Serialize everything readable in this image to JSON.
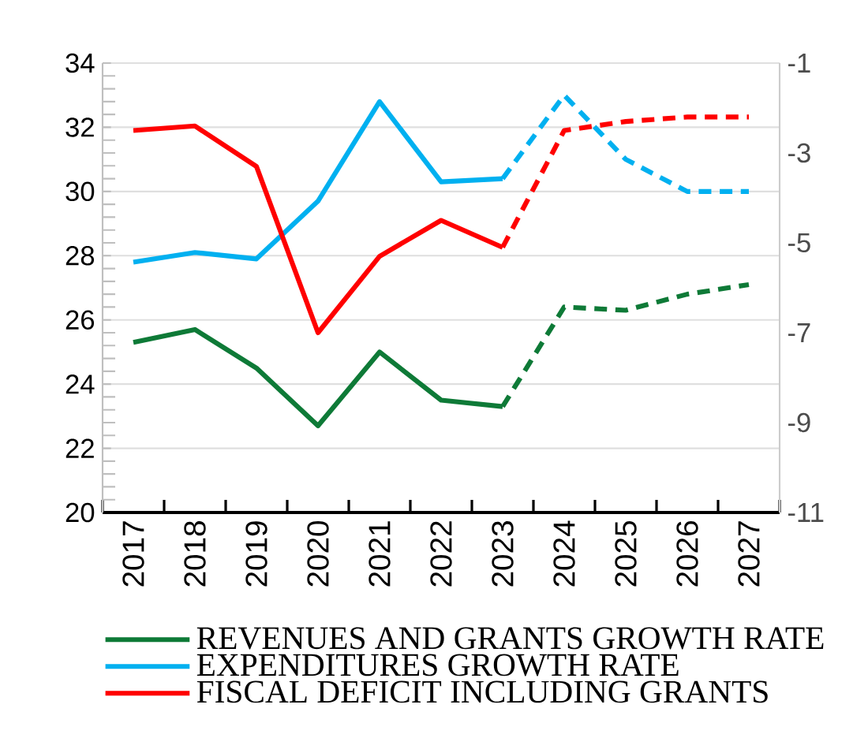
{
  "chart_data": {
    "type": "line",
    "categories": [
      "2017",
      "2018",
      "2019",
      "2020",
      "2021",
      "2022",
      "2023",
      "2024",
      "2025",
      "2026",
      "2027"
    ],
    "series": [
      {
        "name": "REVENUES AND GRANTS GROWTH RATE",
        "color": "#0e7a37",
        "line_style": "solid",
        "values": [
          25.3,
          25.7,
          24.5,
          22.7,
          25.0,
          23.5,
          23.3,
          null,
          null,
          null,
          null
        ]
      },
      {
        "color": "#0e7a37",
        "line_style": "dashed",
        "values": [
          null,
          null,
          null,
          null,
          null,
          null,
          23.3,
          26.4,
          26.3,
          26.8,
          27.1
        ]
      },
      {
        "name": "EXPENDITURES GROWTH RATE",
        "color": "#00b0f0",
        "line_style": "solid",
        "values": [
          27.8,
          28.1,
          27.9,
          29.7,
          32.8,
          30.3,
          30.4,
          null,
          null,
          null,
          null
        ]
      },
      {
        "color": "#00b0f0",
        "line_style": "dashed",
        "values": [
          null,
          null,
          null,
          null,
          null,
          null,
          30.4,
          33.0,
          31.0,
          30.0,
          30.0
        ]
      },
      {
        "name": "FISCAL DEFICIT INCLUDING GRANTS",
        "color": "#ff0000",
        "line_style": "solid",
        "axis": "y2",
        "values": [
          -2.5,
          -2.4,
          -3.3,
          -7.0,
          -5.3,
          -4.5,
          -5.1,
          null,
          null,
          null,
          null
        ]
      },
      {
        "color": "#ff0000",
        "line_style": "dashed",
        "axis": "y2",
        "values": [
          null,
          null,
          null,
          null,
          null,
          null,
          -5.1,
          -2.5,
          -2.3,
          -2.2,
          -2.2
        ]
      }
    ],
    "ylim": [
      20,
      34
    ],
    "yticks": [
      20,
      22,
      24,
      26,
      28,
      30,
      32,
      34
    ],
    "y2lim": [
      -11,
      -1
    ],
    "y2ticks": [
      -11,
      -9,
      -7,
      -5,
      -3,
      -1
    ],
    "grid": "y",
    "legend": "bottom",
    "marker": "none"
  }
}
